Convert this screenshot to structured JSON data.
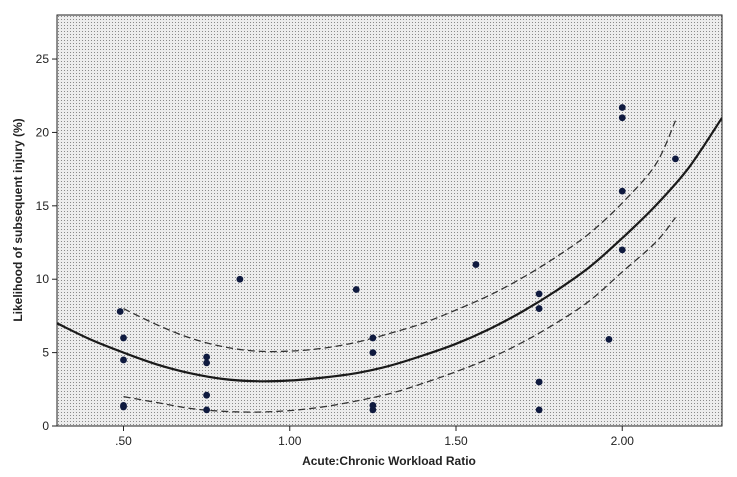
{
  "chart_data": {
    "type": "scatter",
    "title": "",
    "xlabel": "Acute:Chronic Workload Ratio",
    "ylabel": "Likelihood of subsequent injury (%)",
    "xlim": [
      0.3,
      2.3
    ],
    "ylim": [
      0,
      28
    ],
    "x_ticks": [
      0.5,
      1.0,
      1.5,
      2.0
    ],
    "x_tick_labels": [
      ".50",
      "1.00",
      "1.50",
      "2.00"
    ],
    "y_ticks": [
      0,
      5,
      10,
      15,
      20,
      25
    ],
    "y_tick_labels": [
      "0",
      "5",
      "10",
      "15",
      "20",
      "25"
    ],
    "grid": false,
    "background": "dotted gray",
    "points": [
      {
        "x": 0.49,
        "y": 7.8
      },
      {
        "x": 0.5,
        "y": 6.0
      },
      {
        "x": 0.5,
        "y": 4.5
      },
      {
        "x": 0.5,
        "y": 1.4
      },
      {
        "x": 0.5,
        "y": 1.3
      },
      {
        "x": 0.75,
        "y": 4.7
      },
      {
        "x": 0.75,
        "y": 4.3
      },
      {
        "x": 0.75,
        "y": 2.1
      },
      {
        "x": 0.75,
        "y": 1.1
      },
      {
        "x": 0.85,
        "y": 10.0
      },
      {
        "x": 1.2,
        "y": 9.3
      },
      {
        "x": 1.25,
        "y": 6.0
      },
      {
        "x": 1.25,
        "y": 5.0
      },
      {
        "x": 1.25,
        "y": 1.4
      },
      {
        "x": 1.25,
        "y": 1.1
      },
      {
        "x": 1.56,
        "y": 11.0
      },
      {
        "x": 1.75,
        "y": 9.0
      },
      {
        "x": 1.75,
        "y": 8.0
      },
      {
        "x": 1.75,
        "y": 3.0
      },
      {
        "x": 1.75,
        "y": 1.1
      },
      {
        "x": 1.96,
        "y": 5.9
      },
      {
        "x": 2.0,
        "y": 21.7
      },
      {
        "x": 2.0,
        "y": 21.0
      },
      {
        "x": 2.0,
        "y": 16.0
      },
      {
        "x": 2.0,
        "y": 12.0
      },
      {
        "x": 2.16,
        "y": 18.2
      }
    ],
    "fit_curve": [
      {
        "x": 0.3,
        "y": 7.0
      },
      {
        "x": 0.4,
        "y": 5.9
      },
      {
        "x": 0.5,
        "y": 5.0
      },
      {
        "x": 0.6,
        "y": 4.2
      },
      {
        "x": 0.7,
        "y": 3.6
      },
      {
        "x": 0.8,
        "y": 3.2
      },
      {
        "x": 0.9,
        "y": 3.05
      },
      {
        "x": 1.0,
        "y": 3.1
      },
      {
        "x": 1.1,
        "y": 3.3
      },
      {
        "x": 1.2,
        "y": 3.6
      },
      {
        "x": 1.3,
        "y": 4.1
      },
      {
        "x": 1.4,
        "y": 4.8
      },
      {
        "x": 1.5,
        "y": 5.6
      },
      {
        "x": 1.6,
        "y": 6.6
      },
      {
        "x": 1.7,
        "y": 7.8
      },
      {
        "x": 1.8,
        "y": 9.2
      },
      {
        "x": 1.9,
        "y": 10.8
      },
      {
        "x": 2.0,
        "y": 12.8
      },
      {
        "x": 2.1,
        "y": 15.0
      },
      {
        "x": 2.2,
        "y": 17.6
      },
      {
        "x": 2.3,
        "y": 21.0
      }
    ],
    "upper_band": [
      {
        "x": 0.5,
        "y": 8.0
      },
      {
        "x": 0.6,
        "y": 6.9
      },
      {
        "x": 0.7,
        "y": 6.0
      },
      {
        "x": 0.8,
        "y": 5.4
      },
      {
        "x": 0.9,
        "y": 5.1
      },
      {
        "x": 1.0,
        "y": 5.1
      },
      {
        "x": 1.1,
        "y": 5.3
      },
      {
        "x": 1.2,
        "y": 5.7
      },
      {
        "x": 1.3,
        "y": 6.3
      },
      {
        "x": 1.4,
        "y": 7.0
      },
      {
        "x": 1.5,
        "y": 7.9
      },
      {
        "x": 1.6,
        "y": 8.9
      },
      {
        "x": 1.7,
        "y": 10.1
      },
      {
        "x": 1.8,
        "y": 11.5
      },
      {
        "x": 1.9,
        "y": 13.1
      },
      {
        "x": 2.0,
        "y": 15.2
      },
      {
        "x": 2.1,
        "y": 17.8
      },
      {
        "x": 2.16,
        "y": 20.8
      }
    ],
    "lower_band": [
      {
        "x": 0.5,
        "y": 2.0
      },
      {
        "x": 0.6,
        "y": 1.6
      },
      {
        "x": 0.7,
        "y": 1.2
      },
      {
        "x": 0.8,
        "y": 1.0
      },
      {
        "x": 0.9,
        "y": 0.95
      },
      {
        "x": 1.0,
        "y": 1.05
      },
      {
        "x": 1.1,
        "y": 1.3
      },
      {
        "x": 1.2,
        "y": 1.7
      },
      {
        "x": 1.3,
        "y": 2.2
      },
      {
        "x": 1.4,
        "y": 2.9
      },
      {
        "x": 1.5,
        "y": 3.7
      },
      {
        "x": 1.6,
        "y": 4.6
      },
      {
        "x": 1.7,
        "y": 5.7
      },
      {
        "x": 1.8,
        "y": 7.0
      },
      {
        "x": 1.9,
        "y": 8.5
      },
      {
        "x": 2.0,
        "y": 10.5
      },
      {
        "x": 2.1,
        "y": 12.5
      },
      {
        "x": 2.16,
        "y": 14.2
      }
    ]
  },
  "colors": {
    "background": "#ffffff",
    "plot_fill": "#d8d8d8",
    "dot_pattern": "#8a8a8a",
    "point": "#0f1a3f",
    "fit_line": "#1a1a1a",
    "band_line": "#333333",
    "axis": "#222222"
  }
}
